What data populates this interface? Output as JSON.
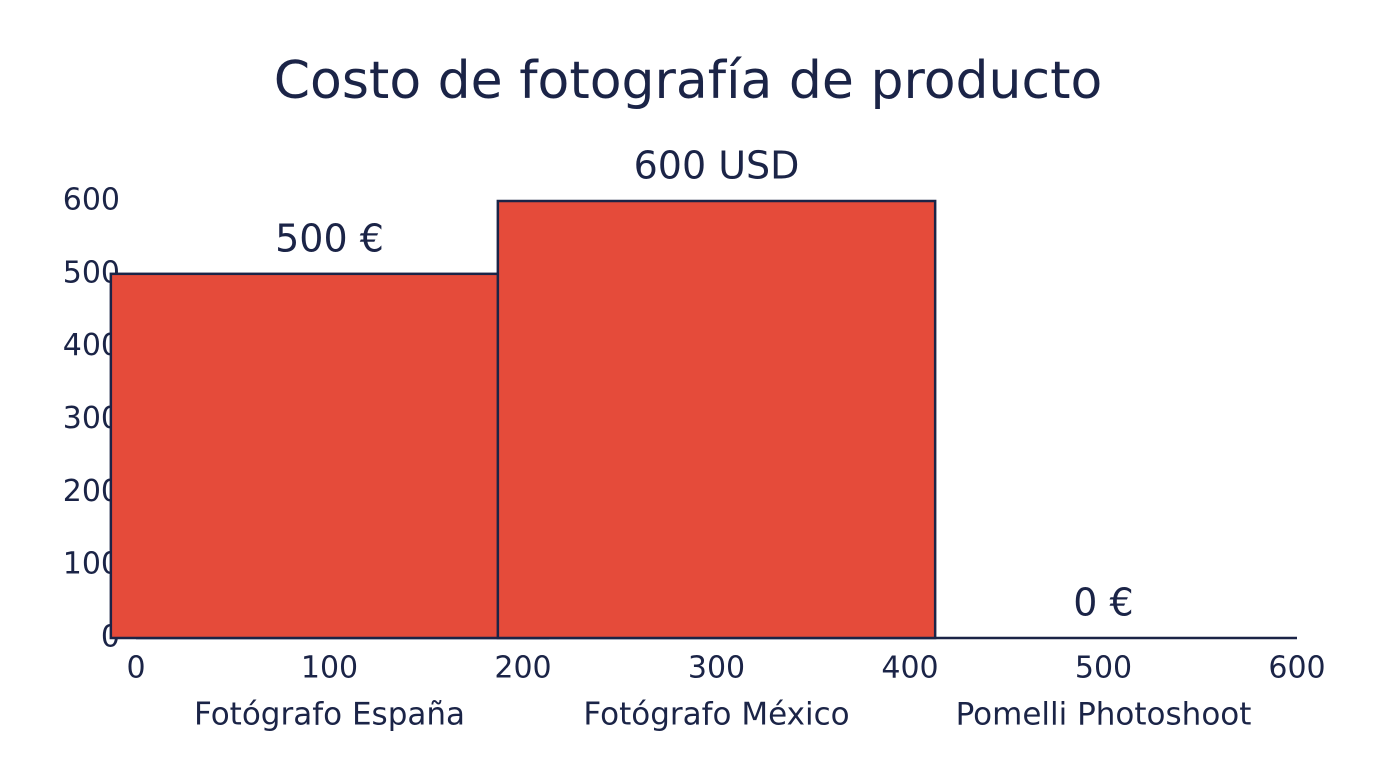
{
  "chart_data": {
    "type": "bar",
    "title": "Costo de fotografía de producto",
    "categories": [
      "Fotógrafo España",
      "Fotógrafo México",
      "Pomelli Photoshoot"
    ],
    "values": [
      500,
      600,
      0
    ],
    "value_labels": [
      "500 €",
      "600 USD",
      "0 €"
    ],
    "color": "#e54b3a",
    "ylim": [
      0,
      600
    ],
    "yticks": [
      0,
      100,
      200,
      300,
      400,
      500,
      600
    ],
    "xlim": [
      0,
      600
    ],
    "xticks": [
      0,
      100,
      200,
      300,
      400,
      500,
      600
    ],
    "grid": false
  }
}
